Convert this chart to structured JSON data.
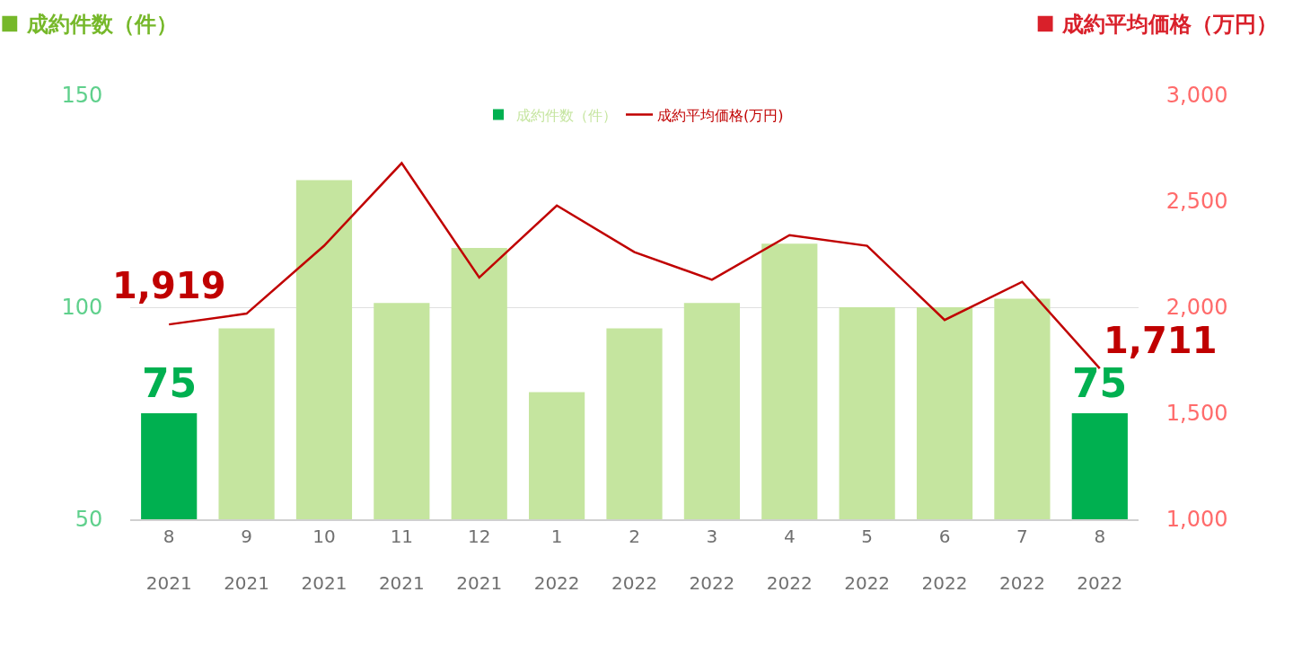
{
  "chart_data": {
    "type": "bar",
    "categories": [
      "8\n2021",
      "9\n2021",
      "10\n2021",
      "11\n2021",
      "12\n2021",
      "1\n2022",
      "2\n2022",
      "3\n2022",
      "4\n2022",
      "5\n2022",
      "6\n2022",
      "7\n2022",
      "8\n2022"
    ],
    "ylabel": "成約件数（件）",
    "y2label": "成約平均価格（万円）",
    "ylim": [
      50,
      150
    ],
    "yticks": [
      50,
      100,
      150
    ],
    "y2lim": [
      1000,
      3000
    ],
    "y2ticks": [
      {
        "value": 1000,
        "label": "1,000"
      },
      {
        "value": 1500,
        "label": "1,500"
      },
      {
        "value": 2000,
        "label": "2,000"
      },
      {
        "value": 2500,
        "label": "2,500"
      },
      {
        "value": 3000,
        "label": "3,000"
      }
    ],
    "series": [
      {
        "name": "成約件数（件）",
        "color": "#c5e59f",
        "colors": [
          "#00b050",
          "#c5e59f",
          "#c5e59f",
          "#c5e59f",
          "#c5e59f",
          "#c5e59f",
          "#c5e59f",
          "#c5e59f",
          "#c5e59f",
          "#c5e59f",
          "#c5e59f",
          "#c5e59f",
          "#00b050"
        ],
        "values": [
          75,
          95,
          130,
          101,
          114,
          80,
          95,
          101,
          115,
          100,
          100,
          102,
          75
        ],
        "value_labels": [
          "75",
          null,
          null,
          null,
          null,
          null,
          null,
          null,
          null,
          null,
          null,
          null,
          "75"
        ]
      },
      {
        "name": "成約平均価格(万円)",
        "type": "line",
        "axis": "y2",
        "color": "#c00000",
        "marker": "none",
        "line_style": "solid",
        "values": [
          1919,
          1970,
          2290,
          2680,
          2140,
          2480,
          2260,
          2130,
          2340,
          2290,
          1940,
          2120,
          1711
        ],
        "value_labels": [
          "1,919",
          null,
          null,
          null,
          null,
          null,
          null,
          null,
          null,
          null,
          null,
          null,
          "1,711"
        ]
      }
    ],
    "grid": "y",
    "legend": "top"
  }
}
